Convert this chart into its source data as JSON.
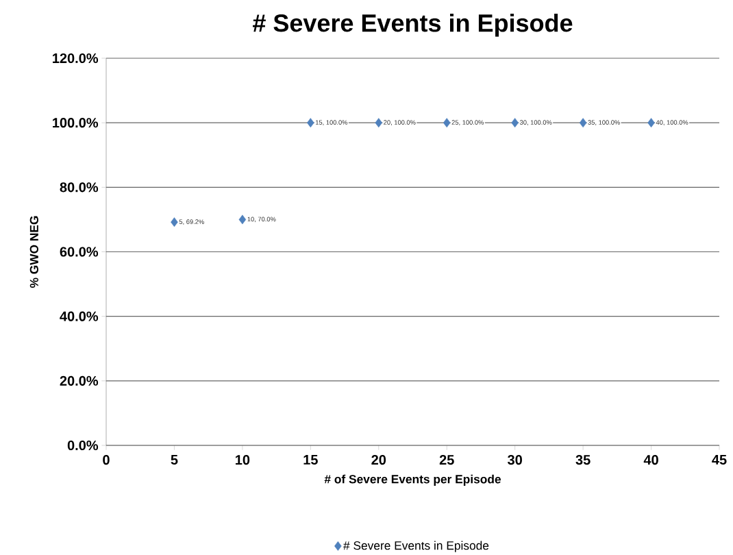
{
  "chart_data": {
    "type": "scatter",
    "title": "# Severe Events in Episode",
    "xlabel": "# of Severe Events per Episode",
    "ylabel": "% GWO NEG",
    "x": [
      5,
      10,
      15,
      20,
      25,
      30,
      35,
      40
    ],
    "series": [
      {
        "name": "# Severe Events in Episode",
        "color": "#4f81bd",
        "values": [
          69.2,
          70.0,
          100.0,
          100.0,
          100.0,
          100.0,
          100.0,
          100.0
        ],
        "value_labels": [
          "5, 69.2%",
          "10, 70.0%",
          "15, 100.0%",
          "20, 100.0%",
          "25, 100.0%",
          "30, 100.0%",
          "35, 100.0%",
          "40, 100.0%"
        ]
      }
    ],
    "xlim": [
      0,
      45
    ],
    "xticks": [
      0,
      5,
      10,
      15,
      20,
      25,
      30,
      35,
      40,
      45
    ],
    "ylim": [
      0,
      120
    ],
    "yticks": [
      {
        "value": 0,
        "label": "0.0%"
      },
      {
        "value": 20,
        "label": "20.0%"
      },
      {
        "value": 40,
        "label": "40.0%"
      },
      {
        "value": 60,
        "label": "60.0%"
      },
      {
        "value": 80,
        "label": "80.0%"
      },
      {
        "value": 100,
        "label": "100.0%"
      },
      {
        "value": 120,
        "label": "120.0%"
      }
    ],
    "grid": "y",
    "legend": "bottom",
    "marker": "diamond"
  }
}
